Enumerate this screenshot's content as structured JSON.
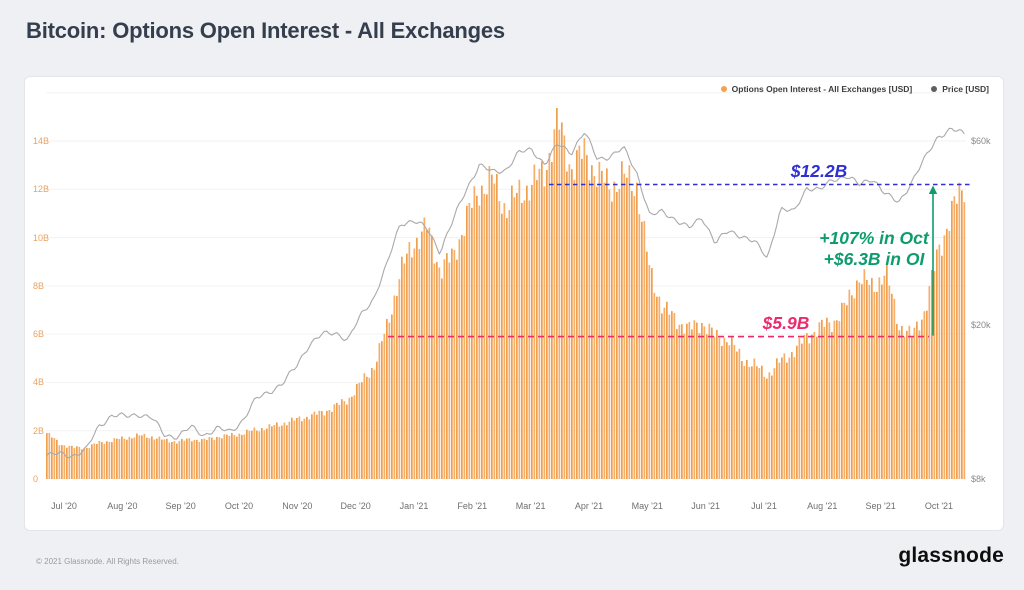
{
  "page": {
    "title": "Bitcoin: Options Open Interest - All Exchanges"
  },
  "legend": {
    "items": [
      {
        "label": "Options Open Interest - All Exchanges [USD]",
        "color": "#f7a24a"
      },
      {
        "label": "Price [USD]",
        "color": "#5f5f5f"
      }
    ]
  },
  "annotations": {
    "upper": {
      "label": "$12.2B",
      "value_billions": 12.2,
      "color": "#2f2fd6"
    },
    "lower": {
      "label": "$5.9B",
      "value_billions": 5.9,
      "color": "#ee2a6e"
    },
    "change": {
      "line1": "+107% in Oct",
      "line2": "+$6.3B in OI",
      "color": "#0e9c6f"
    }
  },
  "footer": {
    "copyright": "© 2021 Glassnode. All Rights Reserved.",
    "brand": "glassnode"
  },
  "chart_data": {
    "type": "combo_bar_line",
    "title": "Bitcoin: Options Open Interest - All Exchanges",
    "x_tick_labels": [
      "Jul '20",
      "Aug '20",
      "Sep '20",
      "Oct '20",
      "Nov '20",
      "Dec '20",
      "Jan '21",
      "Feb '21",
      "Mar '21",
      "Apr '21",
      "May '21",
      "Jun '21",
      "Jul '21",
      "Aug '21",
      "Sep '21",
      "Oct '21"
    ],
    "y_axis_left": {
      "series": "Options Open Interest - All Exchanges [USD]",
      "tick_labels": [
        "0",
        "2B",
        "4B",
        "6B",
        "8B",
        "10B",
        "12B",
        "14B"
      ],
      "tick_values_billions": [
        0,
        2,
        4,
        6,
        8,
        10,
        12,
        14
      ],
      "range_billions": [
        0,
        16
      ],
      "label_color": "#e9a263"
    },
    "y_axis_right": {
      "series": "Price [USD]",
      "scale": "log",
      "tick_labels": [
        "$8k",
        "$20k",
        "$60k"
      ],
      "tick_values_thousands": [
        8,
        20,
        60
      ]
    },
    "bar_color": "#f2a358",
    "line_color": "#a9a9a9",
    "dates": [
      "2020-07-01",
      "2020-07-08",
      "2020-07-15",
      "2020-07-22",
      "2020-07-29",
      "2020-08-05",
      "2020-08-12",
      "2020-08-19",
      "2020-08-26",
      "2020-09-02",
      "2020-09-09",
      "2020-09-16",
      "2020-09-23",
      "2020-09-30",
      "2020-10-07",
      "2020-10-14",
      "2020-10-21",
      "2020-10-28",
      "2020-11-04",
      "2020-11-11",
      "2020-11-18",
      "2020-11-25",
      "2020-12-02",
      "2020-12-09",
      "2020-12-16",
      "2020-12-23",
      "2020-12-30",
      "2021-01-06",
      "2021-01-13",
      "2021-01-20",
      "2021-01-27",
      "2021-02-03",
      "2021-02-10",
      "2021-02-17",
      "2021-02-24",
      "2021-03-03",
      "2021-03-10",
      "2021-03-17",
      "2021-03-24",
      "2021-03-31",
      "2021-04-07",
      "2021-04-14",
      "2021-04-21",
      "2021-04-28",
      "2021-05-05",
      "2021-05-12",
      "2021-05-19",
      "2021-05-26",
      "2021-06-02",
      "2021-06-09",
      "2021-06-16",
      "2021-06-23",
      "2021-06-30",
      "2021-07-07",
      "2021-07-14",
      "2021-07-21",
      "2021-07-28",
      "2021-08-04",
      "2021-08-11",
      "2021-08-18",
      "2021-08-25",
      "2021-09-01",
      "2021-09-08",
      "2021-09-15",
      "2021-09-22",
      "2021-09-29",
      "2021-10-01",
      "2021-10-08",
      "2021-10-15",
      "2021-10-21",
      "2021-10-27"
    ],
    "open_interest_b": [
      1.9,
      1.45,
      1.3,
      1.3,
      1.5,
      1.6,
      1.7,
      1.8,
      1.75,
      1.6,
      1.55,
      1.65,
      1.6,
      1.75,
      1.8,
      1.9,
      2.05,
      2.15,
      2.3,
      2.45,
      2.6,
      2.75,
      3.0,
      3.3,
      4.0,
      4.7,
      6.4,
      8.6,
      9.8,
      10.4,
      8.7,
      9.2,
      10.8,
      12.0,
      12.4,
      11.2,
      11.8,
      12.2,
      12.8,
      14.8,
      12.9,
      13.5,
      12.6,
      12.1,
      12.5,
      12.2,
      8.6,
      7.1,
      6.6,
      6.2,
      6.5,
      5.9,
      5.8,
      5.0,
      4.7,
      4.3,
      4.9,
      5.3,
      5.9,
      6.3,
      6.5,
      7.2,
      8.4,
      7.9,
      8.6,
      6.4,
      5.9,
      7.0,
      9.4,
      11.0,
      12.2
    ],
    "price_usd_k": [
      9.2,
      9.3,
      9.2,
      9.5,
      11.0,
      11.7,
      11.6,
      11.8,
      11.5,
      10.4,
      10.3,
      10.9,
      10.4,
      10.8,
      10.6,
      11.4,
      12.9,
      13.5,
      14.1,
      15.6,
      17.8,
      18.9,
      19.2,
      18.3,
      21.3,
      23.7,
      28.9,
      36.8,
      37.3,
      35.5,
      31.0,
      37.3,
      44.8,
      52.1,
      49.7,
      50.5,
      55.9,
      56.9,
      52.3,
      58.8,
      56.0,
      63.2,
      53.8,
      54.9,
      57.4,
      49.7,
      38.4,
      39.3,
      37.6,
      35.6,
      38.1,
      32.7,
      35.0,
      34.2,
      32.8,
      29.8,
      40.0,
      39.2,
      45.6,
      44.7,
      47.7,
      48.8,
      46.1,
      48.1,
      43.6,
      41.5,
      47.1,
      53.9,
      61.7,
      64.3,
      62.5
    ],
    "annotation_lines_billions": {
      "upper": 12.2,
      "lower": 5.9
    }
  }
}
